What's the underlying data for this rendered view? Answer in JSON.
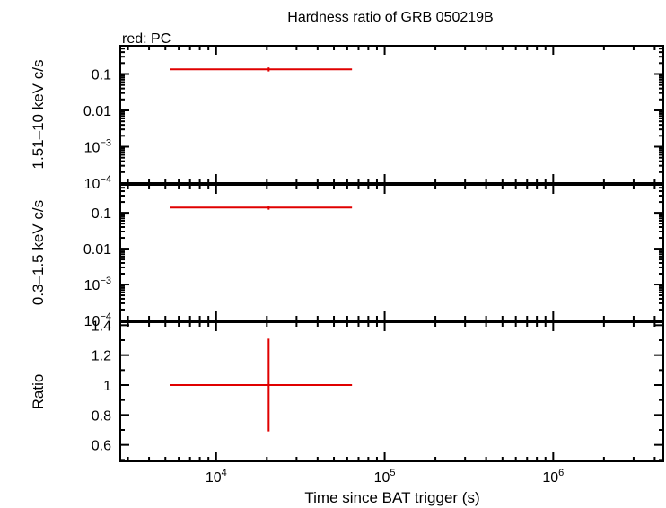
{
  "chart_data": {
    "title": "Hardness ratio of GRB 050219B",
    "legend_note": "red: PC",
    "xlabel": "Time since BAT trigger (s)",
    "x_scale": "log",
    "xlim": [
      2700,
      4500000
    ],
    "x_ticks": [
      {
        "value": 10000,
        "base": "10",
        "exp": "4"
      },
      {
        "value": 100000,
        "base": "10",
        "exp": "5"
      },
      {
        "value": 1000000,
        "base": "10",
        "exp": "6"
      }
    ],
    "series_color": "#e00000",
    "panels": [
      {
        "type": "scatter",
        "ylabel": "1.51–10 keV c/s",
        "y_scale": "log",
        "ylim": [
          0.0001,
          0.6
        ],
        "y_ticks": [
          {
            "value": 0.1,
            "text": "0.1"
          },
          {
            "value": 0.01,
            "text": "0.01"
          },
          {
            "value": 0.001,
            "base": "10",
            "exp": "−3"
          },
          {
            "value": 0.0001,
            "base": "10",
            "exp": "−4"
          }
        ],
        "points": [
          {
            "x": 20500,
            "y": 0.135,
            "x_low": 5300,
            "x_high": 64000,
            "y_low": 0.118,
            "y_high": 0.152
          }
        ]
      },
      {
        "type": "scatter",
        "ylabel": "0.3–1.5 keV c/s",
        "y_scale": "log",
        "ylim": [
          0.0001,
          0.6
        ],
        "y_ticks": [
          {
            "value": 0.1,
            "text": "0.1"
          },
          {
            "value": 0.01,
            "text": "0.01"
          },
          {
            "value": 0.001,
            "base": "10",
            "exp": "−3"
          },
          {
            "value": 0.0001,
            "base": "10",
            "exp": "−4"
          }
        ],
        "points": [
          {
            "x": 20500,
            "y": 0.14,
            "x_low": 5300,
            "x_high": 64000,
            "y_low": 0.122,
            "y_high": 0.158
          }
        ]
      },
      {
        "type": "scatter",
        "ylabel": "Ratio",
        "y_scale": "linear",
        "ylim": [
          0.49,
          1.42
        ],
        "y_ticks": [
          {
            "value": 1.4,
            "text": "1.4"
          },
          {
            "value": 1.2,
            "text": "1.2"
          },
          {
            "value": 1.0,
            "text": "1"
          },
          {
            "value": 0.8,
            "text": "0.8"
          },
          {
            "value": 0.6,
            "text": "0.6"
          }
        ],
        "points": [
          {
            "x": 20500,
            "y": 1.0,
            "x_low": 5300,
            "x_high": 64000,
            "y_low": 0.69,
            "y_high": 1.31
          }
        ]
      }
    ]
  }
}
